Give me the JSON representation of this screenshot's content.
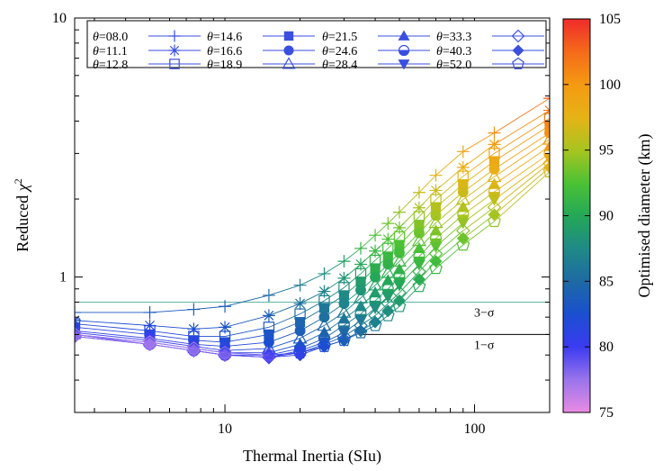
{
  "chart_data": {
    "type": "line",
    "xlabel": "Thermal Inertia (SIu)",
    "ylabel": "Reduced χ2",
    "xscale": "log",
    "yscale": "log",
    "xlim": [
      2.5,
      200
    ],
    "ylim": [
      0.3,
      10
    ],
    "x_ticks": [
      {
        "value": 10,
        "label": "10"
      },
      {
        "value": 100,
        "label": "100"
      }
    ],
    "y_ticks": [
      {
        "value": 1,
        "label": "1"
      },
      {
        "value": 10,
        "label": "10"
      }
    ],
    "x": [
      2.5,
      5,
      7.5,
      10,
      15,
      20,
      25,
      30,
      35,
      40,
      45,
      50,
      60,
      70,
      90,
      120,
      200
    ],
    "series": [
      {
        "name": "08.0",
        "marker": "plus",
        "y": [
          0.73,
          0.73,
          0.75,
          0.77,
          0.85,
          0.93,
          1.03,
          1.15,
          1.29,
          1.45,
          1.61,
          1.78,
          2.12,
          2.47,
          3.05,
          3.6,
          4.9
        ]
      },
      {
        "name": "11.1",
        "marker": "star",
        "y": [
          0.68,
          0.65,
          0.63,
          0.64,
          0.71,
          0.79,
          0.88,
          0.99,
          1.12,
          1.26,
          1.4,
          1.55,
          1.85,
          2.16,
          2.65,
          3.25,
          4.4
        ]
      },
      {
        "name": "12.8",
        "marker": "open-square",
        "y": [
          0.66,
          0.62,
          0.59,
          0.59,
          0.64,
          0.72,
          0.81,
          0.91,
          1.03,
          1.16,
          1.29,
          1.43,
          1.71,
          1.99,
          2.45,
          3.0,
          4.1
        ]
      },
      {
        "name": "14.6",
        "marker": "filled-square",
        "y": [
          0.64,
          0.6,
          0.57,
          0.56,
          0.6,
          0.67,
          0.76,
          0.85,
          0.96,
          1.08,
          1.2,
          1.33,
          1.59,
          1.86,
          2.28,
          2.8,
          3.85
        ]
      },
      {
        "name": "16.6",
        "marker": "filled-circle",
        "y": [
          0.62,
          0.58,
          0.55,
          0.54,
          0.56,
          0.62,
          0.7,
          0.79,
          0.89,
          1.0,
          1.12,
          1.24,
          1.48,
          1.73,
          2.13,
          2.61,
          3.6
        ]
      },
      {
        "name": "18.9",
        "marker": "open-triangle",
        "y": [
          0.61,
          0.57,
          0.54,
          0.52,
          0.53,
          0.58,
          0.65,
          0.73,
          0.83,
          0.93,
          1.04,
          1.15,
          1.38,
          1.62,
          1.99,
          2.44,
          3.4
        ]
      },
      {
        "name": "21.5",
        "marker": "filled-triangle",
        "y": [
          0.6,
          0.56,
          0.53,
          0.51,
          0.51,
          0.55,
          0.61,
          0.69,
          0.77,
          0.87,
          0.97,
          1.07,
          1.29,
          1.51,
          1.86,
          2.28,
          3.2
        ]
      },
      {
        "name": "24.6",
        "marker": "half-circle",
        "y": [
          0.6,
          0.55,
          0.52,
          0.5,
          0.5,
          0.53,
          0.58,
          0.65,
          0.72,
          0.81,
          0.9,
          1.0,
          1.2,
          1.41,
          1.74,
          2.13,
          3.0
        ]
      },
      {
        "name": "28.4",
        "marker": "filled-down-triangle",
        "y": [
          0.59,
          0.55,
          0.52,
          0.5,
          0.49,
          0.52,
          0.56,
          0.61,
          0.68,
          0.76,
          0.84,
          0.93,
          1.12,
          1.31,
          1.62,
          1.99,
          2.85
        ]
      },
      {
        "name": "33.3",
        "marker": "open-diamond",
        "y": [
          0.59,
          0.55,
          0.52,
          0.5,
          0.49,
          0.51,
          0.55,
          0.59,
          0.65,
          0.71,
          0.79,
          0.87,
          1.05,
          1.23,
          1.51,
          1.86,
          2.75
        ]
      },
      {
        "name": "40.3",
        "marker": "filled-diamond",
        "y": [
          0.59,
          0.55,
          0.52,
          0.5,
          0.49,
          0.5,
          0.54,
          0.57,
          0.62,
          0.67,
          0.74,
          0.81,
          0.98,
          1.15,
          1.41,
          1.74,
          2.65
        ]
      },
      {
        "name": "52.0",
        "marker": "open-pentagon",
        "y": [
          0.6,
          0.56,
          0.53,
          0.51,
          0.5,
          0.51,
          0.54,
          0.57,
          0.61,
          0.65,
          0.71,
          0.77,
          0.92,
          1.08,
          1.33,
          1.64,
          2.55
        ]
      }
    ],
    "reference_lines": [
      {
        "label": "3−σ",
        "y": 0.8,
        "color": "#5fb3a6",
        "x_start": 2.5
      },
      {
        "label": "1−σ",
        "y": 0.6,
        "color": "#000000",
        "x_start": 35
      }
    ],
    "legend": {
      "prefix": "θ=",
      "placement": "top",
      "columns": 5
    },
    "colorbar": {
      "label": "Optimised diameter (km)",
      "range": [
        75,
        105
      ],
      "ticks": [
        "75",
        "80",
        "85",
        "90",
        "95",
        "100",
        "105"
      ],
      "colors": [
        "#e98be2",
        "#9a74ec",
        "#3b3bf0",
        "#1a4fd0",
        "#1e6aa4",
        "#1f8a86",
        "#24a857",
        "#4bc234",
        "#a8c420",
        "#e6b316",
        "#f59a12",
        "#f56a1a",
        "#ef2b2b"
      ]
    },
    "legend_color": "#3a4fe0",
    "curve_colors": {
      "low_diameter": "#5a5ad8",
      "high_diameter": "#f05020"
    },
    "diameters": {
      "08.0": [
        83.3,
        83.0,
        83.5,
        84.0,
        85.0,
        86.5,
        88.0,
        89.5,
        91.0,
        92.5,
        93.5,
        94.5,
        96.0,
        97.5,
        99.0,
        100.5,
        103.0
      ],
      "11.1": [
        82.5,
        82.0,
        82.5,
        83.0,
        84.0,
        85.5,
        87.0,
        88.5,
        90.0,
        91.5,
        92.5,
        93.5,
        95.0,
        96.5,
        98.0,
        99.5,
        102.0
      ],
      "12.8": [
        82.0,
        81.5,
        82.0,
        82.5,
        83.5,
        85.0,
        86.5,
        88.0,
        89.5,
        91.0,
        92.0,
        93.0,
        94.5,
        96.0,
        97.5,
        99.0,
        101.5
      ],
      "14.6": [
        81.5,
        81.0,
        81.5,
        82.0,
        83.0,
        84.5,
        86.0,
        87.5,
        89.0,
        90.5,
        91.5,
        92.5,
        94.0,
        95.5,
        97.0,
        98.5,
        101.0
      ],
      "16.6": [
        81.0,
        80.5,
        81.0,
        81.5,
        82.5,
        84.0,
        85.5,
        87.0,
        88.5,
        90.0,
        91.0,
        92.0,
        93.5,
        95.0,
        96.5,
        98.0,
        100.5
      ],
      "18.9": [
        80.5,
        80.0,
        80.5,
        81.0,
        82.0,
        83.5,
        85.0,
        86.5,
        88.0,
        89.5,
        90.5,
        91.5,
        93.0,
        94.5,
        96.0,
        97.5,
        100.0
      ],
      "21.5": [
        80.0,
        79.5,
        80.0,
        80.5,
        81.5,
        83.0,
        84.5,
        86.0,
        87.5,
        89.0,
        90.0,
        91.0,
        92.5,
        94.0,
        95.5,
        97.0,
        99.5
      ],
      "24.6": [
        79.5,
        79.0,
        79.5,
        80.0,
        81.0,
        82.5,
        84.0,
        85.5,
        87.0,
        88.5,
        89.5,
        90.5,
        92.0,
        93.5,
        95.0,
        96.5,
        99.0
      ],
      "28.4": [
        79.0,
        78.5,
        79.0,
        79.5,
        80.5,
        82.0,
        83.5,
        85.0,
        86.5,
        88.0,
        89.0,
        90.0,
        91.5,
        93.0,
        94.5,
        96.0,
        98.5
      ],
      "33.3": [
        78.5,
        78.0,
        78.5,
        79.0,
        80.0,
        81.5,
        83.0,
        84.5,
        86.0,
        87.5,
        88.5,
        89.5,
        91.0,
        92.5,
        94.0,
        95.5,
        98.0
      ],
      "40.3": [
        78.0,
        77.5,
        78.0,
        78.5,
        79.5,
        81.0,
        82.5,
        84.0,
        85.5,
        87.0,
        88.0,
        89.0,
        90.5,
        92.0,
        93.5,
        95.0,
        97.5
      ],
      "52.0": [
        77.5,
        77.0,
        77.5,
        78.0,
        79.0,
        80.5,
        82.0,
        83.5,
        85.0,
        86.5,
        87.5,
        88.5,
        90.0,
        91.5,
        93.0,
        94.5,
        97.0
      ]
    }
  }
}
